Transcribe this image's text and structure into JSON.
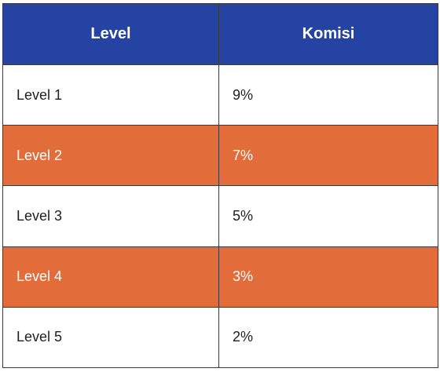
{
  "table": {
    "headers": [
      "Level",
      "Komisi"
    ],
    "rows": [
      {
        "level": "Level 1",
        "komisi": "9%",
        "highlight": false
      },
      {
        "level": "Level 2",
        "komisi": "7%",
        "highlight": true
      },
      {
        "level": "Level 3",
        "komisi": "5%",
        "highlight": false
      },
      {
        "level": "Level 4",
        "komisi": "3%",
        "highlight": true
      },
      {
        "level": "Level 5",
        "komisi": "2%",
        "highlight": false
      }
    ]
  },
  "colors": {
    "header_bg": "#2443a3",
    "highlight_row_bg": "#e36d3a",
    "border": "#3a3a3a"
  }
}
